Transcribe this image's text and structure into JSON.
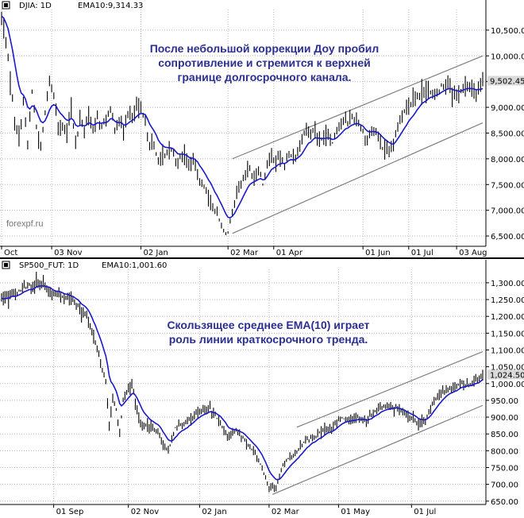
{
  "colors": {
    "ema": "#1a1acc",
    "price": "#000000",
    "grid": "#b5b5b5",
    "channel": "#7f7f7f",
    "label_box": "#d9d9d9",
    "note": "#2b2f8f"
  },
  "watermark": "forexpf.ru",
  "chart_data": [
    {
      "type": "line",
      "header": {
        "symbol": "DJIA: 1D",
        "indicator": "EMA10:9,314.33"
      },
      "annotation": [
        "После небольшой коррекции Доу пробил",
        "сопротивление и стремится к верхней",
        "границе долгосрочного канала."
      ],
      "last_price": "9,502.45",
      "ylim": [
        6300,
        10900
      ],
      "y_ticks": [
        6500,
        7000,
        7500,
        8000,
        8500,
        9000,
        9500,
        10000,
        10500
      ],
      "y_tick_labels": [
        "6,500.00",
        "7,000.00",
        "7,500.00",
        "8,000.00",
        "8,500.00",
        "9,000.00",
        "9,500.00",
        "10,000.00",
        "10,500.00"
      ],
      "x_ticks": [
        {
          "label": "Oct",
          "i": 0
        },
        {
          "label": "03 Nov",
          "i": 23
        },
        {
          "label": "02 Jan",
          "i": 64
        },
        {
          "label": "02 Mar",
          "i": 104
        },
        {
          "label": "01 Apr",
          "i": 125
        },
        {
          "label": "01 Jun",
          "i": 166
        },
        {
          "label": "01 Jul",
          "i": 187
        },
        {
          "label": "03 Aug",
          "i": 209
        }
      ],
      "bars": 222,
      "anchors": [
        [
          0,
          10750
        ],
        [
          2,
          10300
        ],
        [
          4,
          9500
        ],
        [
          6,
          8800
        ],
        [
          8,
          8400
        ],
        [
          10,
          9100
        ],
        [
          12,
          8300
        ],
        [
          14,
          9300
        ],
        [
          16,
          8600
        ],
        [
          18,
          8200
        ],
        [
          20,
          8900
        ],
        [
          22,
          9500
        ],
        [
          24,
          9200
        ],
        [
          26,
          8700
        ],
        [
          28,
          8600
        ],
        [
          30,
          8500
        ],
        [
          32,
          9000
        ],
        [
          34,
          8300
        ],
        [
          36,
          8700
        ],
        [
          38,
          8600
        ],
        [
          40,
          8900
        ],
        [
          42,
          8500
        ],
        [
          44,
          8800
        ],
        [
          46,
          8650
        ],
        [
          48,
          8750
        ],
        [
          50,
          8900
        ],
        [
          52,
          8600
        ],
        [
          54,
          8750
        ],
        [
          56,
          8500
        ],
        [
          58,
          8900
        ],
        [
          60,
          8800
        ],
        [
          62,
          9000
        ],
        [
          64,
          8900
        ],
        [
          66,
          8700
        ],
        [
          68,
          8300
        ],
        [
          70,
          8200
        ],
        [
          72,
          8000
        ],
        [
          74,
          8000
        ],
        [
          76,
          8100
        ],
        [
          78,
          8200
        ],
        [
          80,
          7950
        ],
        [
          82,
          8000
        ],
        [
          84,
          8100
        ],
        [
          86,
          7850
        ],
        [
          88,
          8000
        ],
        [
          90,
          7700
        ],
        [
          92,
          7500
        ],
        [
          94,
          7400
        ],
        [
          96,
          7200
        ],
        [
          98,
          7000
        ],
        [
          100,
          6800
        ],
        [
          102,
          6600
        ],
        [
          104,
          6550
        ],
        [
          106,
          6950
        ],
        [
          108,
          7300
        ],
        [
          110,
          7500
        ],
        [
          112,
          7700
        ],
        [
          114,
          7800
        ],
        [
          116,
          7600
        ],
        [
          118,
          7800
        ],
        [
          120,
          7500
        ],
        [
          122,
          7900
        ],
        [
          124,
          8050
        ],
        [
          126,
          8000
        ],
        [
          128,
          8000
        ],
        [
          130,
          7900
        ],
        [
          132,
          8100
        ],
        [
          134,
          8000
        ],
        [
          136,
          8150
        ],
        [
          138,
          8400
        ],
        [
          140,
          8600
        ],
        [
          142,
          8500
        ],
        [
          144,
          8600
        ],
        [
          146,
          8300
        ],
        [
          148,
          8450
        ],
        [
          150,
          8500
        ],
        [
          152,
          8300
        ],
        [
          154,
          8600
        ],
        [
          156,
          8700
        ],
        [
          158,
          8700
        ],
        [
          160,
          8750
        ],
        [
          162,
          8800
        ],
        [
          164,
          8700
        ],
        [
          166,
          8500
        ],
        [
          168,
          8350
        ],
        [
          170,
          8550
        ],
        [
          172,
          8500
        ],
        [
          174,
          8300
        ],
        [
          176,
          8150
        ],
        [
          178,
          8100
        ],
        [
          180,
          8250
        ],
        [
          182,
          8650
        ],
        [
          184,
          8900
        ],
        [
          186,
          9000
        ],
        [
          188,
          9100
        ],
        [
          190,
          9200
        ],
        [
          192,
          9250
        ],
        [
          194,
          9300
        ],
        [
          196,
          9350
        ],
        [
          198,
          9200
        ],
        [
          200,
          9300
        ],
        [
          202,
          9400
        ],
        [
          204,
          9500
        ],
        [
          206,
          9450
        ],
        [
          208,
          9250
        ],
        [
          210,
          9300
        ],
        [
          212,
          9400
        ],
        [
          214,
          9350
        ],
        [
          216,
          9400
        ],
        [
          218,
          9300
        ],
        [
          220,
          9400
        ],
        [
          221,
          9502
        ]
      ],
      "channel_lines": [
        {
          "name": "upper",
          "from": {
            "i": 106,
            "y": 8000
          },
          "to": {
            "i": 221,
            "y": 10000
          }
        },
        {
          "name": "lower",
          "from": {
            "i": 106,
            "y": 6550
          },
          "to": {
            "i": 221,
            "y": 8700
          }
        }
      ]
    },
    {
      "type": "line",
      "header": {
        "symbol": "SP500_FUT: 1D",
        "indicator": "EMA10:1,001.60"
      },
      "annotation": [
        "Скользящее среднее EMA(10) играет",
        "роль линии краткосрочного тренда."
      ],
      "last_price": "1,024.50",
      "ylim": [
        640,
        1340
      ],
      "y_ticks": [
        650,
        700,
        750,
        800,
        850,
        900,
        950,
        1000,
        1050,
        1100,
        1150,
        1200,
        1250,
        1300
      ],
      "y_tick_labels": [
        "650.00",
        "700.00",
        "750.00",
        "800.00",
        "850.00",
        "900.00",
        "950.00",
        "1,000.00",
        "1,050.00",
        "1,100.00",
        "1,150.00",
        "1,200.00",
        "1,250.00",
        "1,300.00"
      ],
      "x_ticks": [
        {
          "label": "01 Sep",
          "i": 30
        },
        {
          "label": "02 Nov",
          "i": 73
        },
        {
          "label": "02 Jan",
          "i": 114
        },
        {
          "label": "02 Mar",
          "i": 154
        },
        {
          "label": "01 May",
          "i": 194
        },
        {
          "label": "01 Jul",
          "i": 236
        }
      ],
      "bars": 278,
      "anchors": [
        [
          0,
          1250
        ],
        [
          5,
          1265
        ],
        [
          10,
          1275
        ],
        [
          15,
          1290
        ],
        [
          20,
          1295
        ],
        [
          25,
          1285
        ],
        [
          30,
          1270
        ],
        [
          35,
          1260
        ],
        [
          40,
          1250
        ],
        [
          45,
          1225
        ],
        [
          50,
          1190
        ],
        [
          55,
          1100
        ],
        [
          60,
          1000
        ],
        [
          62,
          880
        ],
        [
          64,
          960
        ],
        [
          66,
          920
        ],
        [
          68,
          850
        ],
        [
          70,
          950
        ],
        [
          72,
          980
        ],
        [
          75,
          1000
        ],
        [
          78,
          920
        ],
        [
          80,
          880
        ],
        [
          85,
          870
        ],
        [
          90,
          860
        ],
        [
          93,
          820
        ],
        [
          96,
          800
        ],
        [
          100,
          870
        ],
        [
          105,
          880
        ],
        [
          110,
          900
        ],
        [
          115,
          920
        ],
        [
          120,
          925
        ],
        [
          125,
          890
        ],
        [
          130,
          840
        ],
        [
          135,
          860
        ],
        [
          140,
          830
        ],
        [
          145,
          800
        ],
        [
          150,
          750
        ],
        [
          154,
          690
        ],
        [
          158,
          690
        ],
        [
          162,
          760
        ],
        [
          166,
          780
        ],
        [
          170,
          800
        ],
        [
          175,
          830
        ],
        [
          180,
          840
        ],
        [
          185,
          860
        ],
        [
          190,
          870
        ],
        [
          195,
          900
        ],
        [
          200,
          890
        ],
        [
          205,
          900
        ],
        [
          210,
          890
        ],
        [
          215,
          920
        ],
        [
          220,
          935
        ],
        [
          225,
          930
        ],
        [
          230,
          920
        ],
        [
          235,
          900
        ],
        [
          240,
          880
        ],
        [
          244,
          890
        ],
        [
          248,
          940
        ],
        [
          252,
          965
        ],
        [
          256,
          980
        ],
        [
          260,
          990
        ],
        [
          264,
          1000
        ],
        [
          268,
          995
        ],
        [
          272,
          1005
        ],
        [
          277,
          1024
        ]
      ],
      "channel_lines": [
        {
          "name": "upper",
          "from": {
            "i": 170,
            "y": 870
          },
          "to": {
            "i": 277,
            "y": 1095
          }
        },
        {
          "name": "lower",
          "from": {
            "i": 156,
            "y": 670
          },
          "to": {
            "i": 277,
            "y": 935
          }
        }
      ]
    }
  ]
}
